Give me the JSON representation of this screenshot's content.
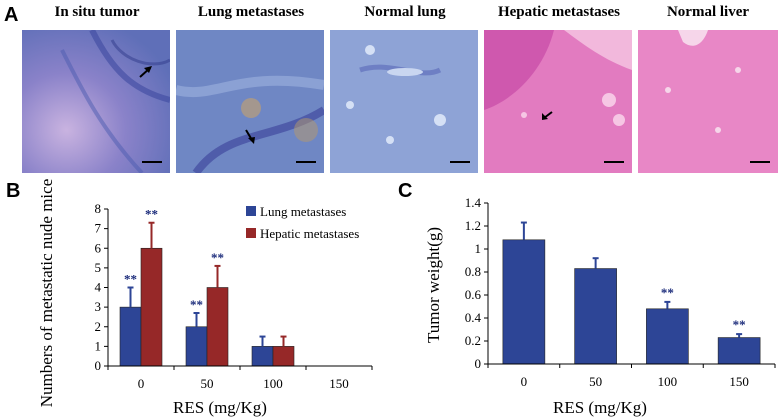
{
  "panel_labels": {
    "a": "A",
    "b": "B",
    "c": "C"
  },
  "micrographs": [
    {
      "title": "In situ tumor",
      "stain": "blue"
    },
    {
      "title": "Lung metastases",
      "stain": "blue"
    },
    {
      "title": "Normal lung",
      "stain": "blue"
    },
    {
      "title": "Hepatic metastases",
      "stain": "pink"
    },
    {
      "title": "Normal liver",
      "stain": "pink"
    }
  ],
  "colors": {
    "lung": "#2d4596",
    "hepatic": "#962828",
    "pink_stain": "#e06bb4",
    "blue_stain": "#7a8fcf",
    "sig": "#1a2a7a"
  },
  "chart_data": [
    {
      "type": "bar",
      "categories": [
        "0",
        "50",
        "100",
        "150"
      ],
      "series": [
        {
          "name": "Lung metastases",
          "values": [
            3,
            2,
            1,
            0
          ],
          "errors": [
            1,
            0.7,
            0.5,
            0
          ]
        },
        {
          "name": "Hepatic metastases",
          "values": [
            6,
            4,
            1,
            0
          ],
          "errors": [
            1.3,
            1.1,
            0.5,
            0
          ]
        }
      ],
      "annotations": [
        "**",
        "**",
        "",
        ""
      ],
      "xlabel": "RES (mg/Kg)",
      "ylabel": "Numbers of metastatic nude mice",
      "ylim": [
        0,
        8
      ],
      "yticks": [
        "0",
        "1",
        "2",
        "3",
        "4",
        "5",
        "6",
        "7",
        "8"
      ],
      "legend": "top-right"
    },
    {
      "type": "bar",
      "categories": [
        "0",
        "50",
        "100",
        "150"
      ],
      "series": [
        {
          "name": "",
          "values": [
            1.08,
            0.83,
            0.48,
            0.23
          ],
          "errors": [
            0.15,
            0.09,
            0.06,
            0.03
          ]
        }
      ],
      "annotations": [
        "",
        "",
        "**",
        "**"
      ],
      "xlabel": "RES (mg/Kg)",
      "ylabel": "Tumor weight(g)",
      "ylim": [
        0,
        1.4
      ],
      "yticks": [
        "0",
        "0.2",
        "0.4",
        "0.6",
        "0.8",
        "1",
        "1.2",
        "1.4"
      ]
    }
  ]
}
